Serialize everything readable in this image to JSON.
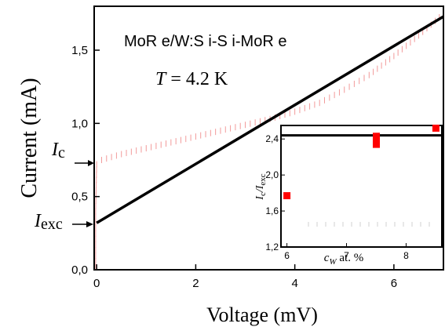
{
  "chart_data": [
    {
      "type": "line",
      "xlabel": "Voltage (mV)",
      "ylabel": "Current (mA)",
      "xlim": [
        -0.05,
        7.0
      ],
      "ylim": [
        0.0,
        1.8
      ],
      "x_ticks": [
        {
          "value": 0,
          "label": "0"
        },
        {
          "value": 2,
          "label": "2"
        },
        {
          "value": 4,
          "label": "4"
        },
        {
          "value": 6,
          "label": "6"
        }
      ],
      "y_ticks": [
        {
          "value": 0.0,
          "label": "0,0"
        },
        {
          "value": 0.5,
          "label": "0,5"
        },
        {
          "value": 1.0,
          "label": "1,0"
        },
        {
          "value": 1.5,
          "label": "1,5"
        }
      ],
      "annotations": {
        "sample": "MoR e/W:S i-S i-MoR e",
        "temperature": "T = 4.2 K",
        "temp_symbol": "T",
        "temp_value": " = 4.2 K",
        "ic_main": "I",
        "ic_sub": "c",
        "iexc_main": "I",
        "iexc_sub": "exc"
      },
      "series": [
        {
          "style": "solid-black",
          "x": [
            0.0,
            7.0
          ],
          "y": [
            0.32,
            1.73
          ]
        },
        {
          "style": "dotted-red",
          "x": [
            -0.02,
            -0.02,
            0.0,
            0.1,
            0.5,
            1.0,
            1.5,
            2.0,
            2.5,
            3.0,
            3.5,
            4.0,
            4.5,
            5.0,
            5.5,
            6.0,
            6.5,
            7.0
          ],
          "y": [
            0.02,
            0.4,
            0.72,
            0.75,
            0.79,
            0.83,
            0.87,
            0.91,
            0.95,
            0.99,
            1.03,
            1.08,
            1.14,
            1.23,
            1.33,
            1.46,
            1.6,
            1.75
          ]
        }
      ]
    },
    {
      "type": "scatter",
      "xlabel_main": "c",
      "xlabel_sub": "W",
      "xlabel_rest": " at. %",
      "ylabel_main": "I",
      "ylabel_sub1": "c",
      "ylabel_sep": "/I",
      "ylabel_sub2": "exc",
      "xlim": [
        5.9,
        8.6
      ],
      "ylim": [
        1.2,
        2.55
      ],
      "x_ticks": [
        {
          "value": 6,
          "label": "6"
        },
        {
          "value": 7,
          "label": "7"
        },
        {
          "value": 8,
          "label": "8"
        }
      ],
      "y_ticks": [
        {
          "value": 1.2,
          "label": "1,2"
        },
        {
          "value": 1.6,
          "label": "1,6"
        },
        {
          "value": 2.0,
          "label": "2,0"
        },
        {
          "value": 2.4,
          "label": "2,4"
        }
      ],
      "hline": 2.44,
      "points": [
        {
          "x": 6.0,
          "y": 1.77
        },
        {
          "x": 7.5,
          "y": 2.43
        },
        {
          "x": 7.5,
          "y": 2.37
        },
        {
          "x": 7.5,
          "y": 2.34
        },
        {
          "x": 8.5,
          "y": 2.52
        }
      ],
      "point_color": "#ff0000"
    }
  ]
}
